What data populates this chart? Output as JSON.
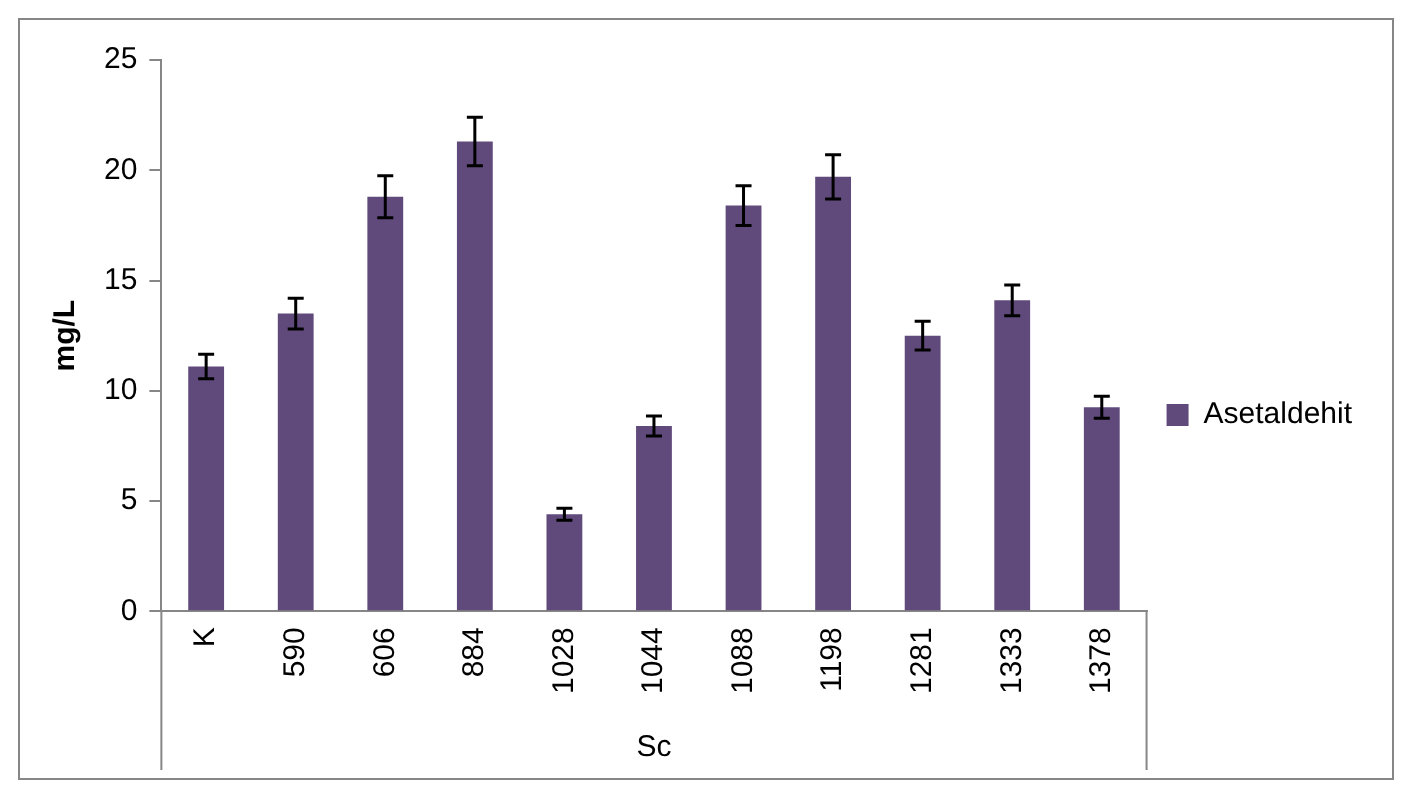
{
  "chart_data": {
    "type": "bar",
    "xlabel": "Sc",
    "ylabel": "mg/L",
    "categories": [
      "K",
      "590",
      "606",
      "884",
      "1028",
      "1044",
      "1088",
      "1198",
      "1281",
      "1333",
      "1378"
    ],
    "series": [
      {
        "name": "Asetaldehit",
        "color": "#604a7b",
        "values": [
          11.1,
          13.5,
          18.8,
          21.3,
          4.4,
          8.4,
          18.4,
          19.7,
          12.5,
          14.1,
          9.25
        ],
        "errors": [
          0.55,
          0.7,
          0.95,
          1.1,
          0.27,
          0.45,
          0.9,
          1.0,
          0.65,
          0.7,
          0.5
        ]
      }
    ],
    "ylim": [
      0,
      25
    ],
    "yticks": [
      0,
      5,
      10,
      15,
      20,
      25
    ],
    "grid": false,
    "legend": "right"
  }
}
